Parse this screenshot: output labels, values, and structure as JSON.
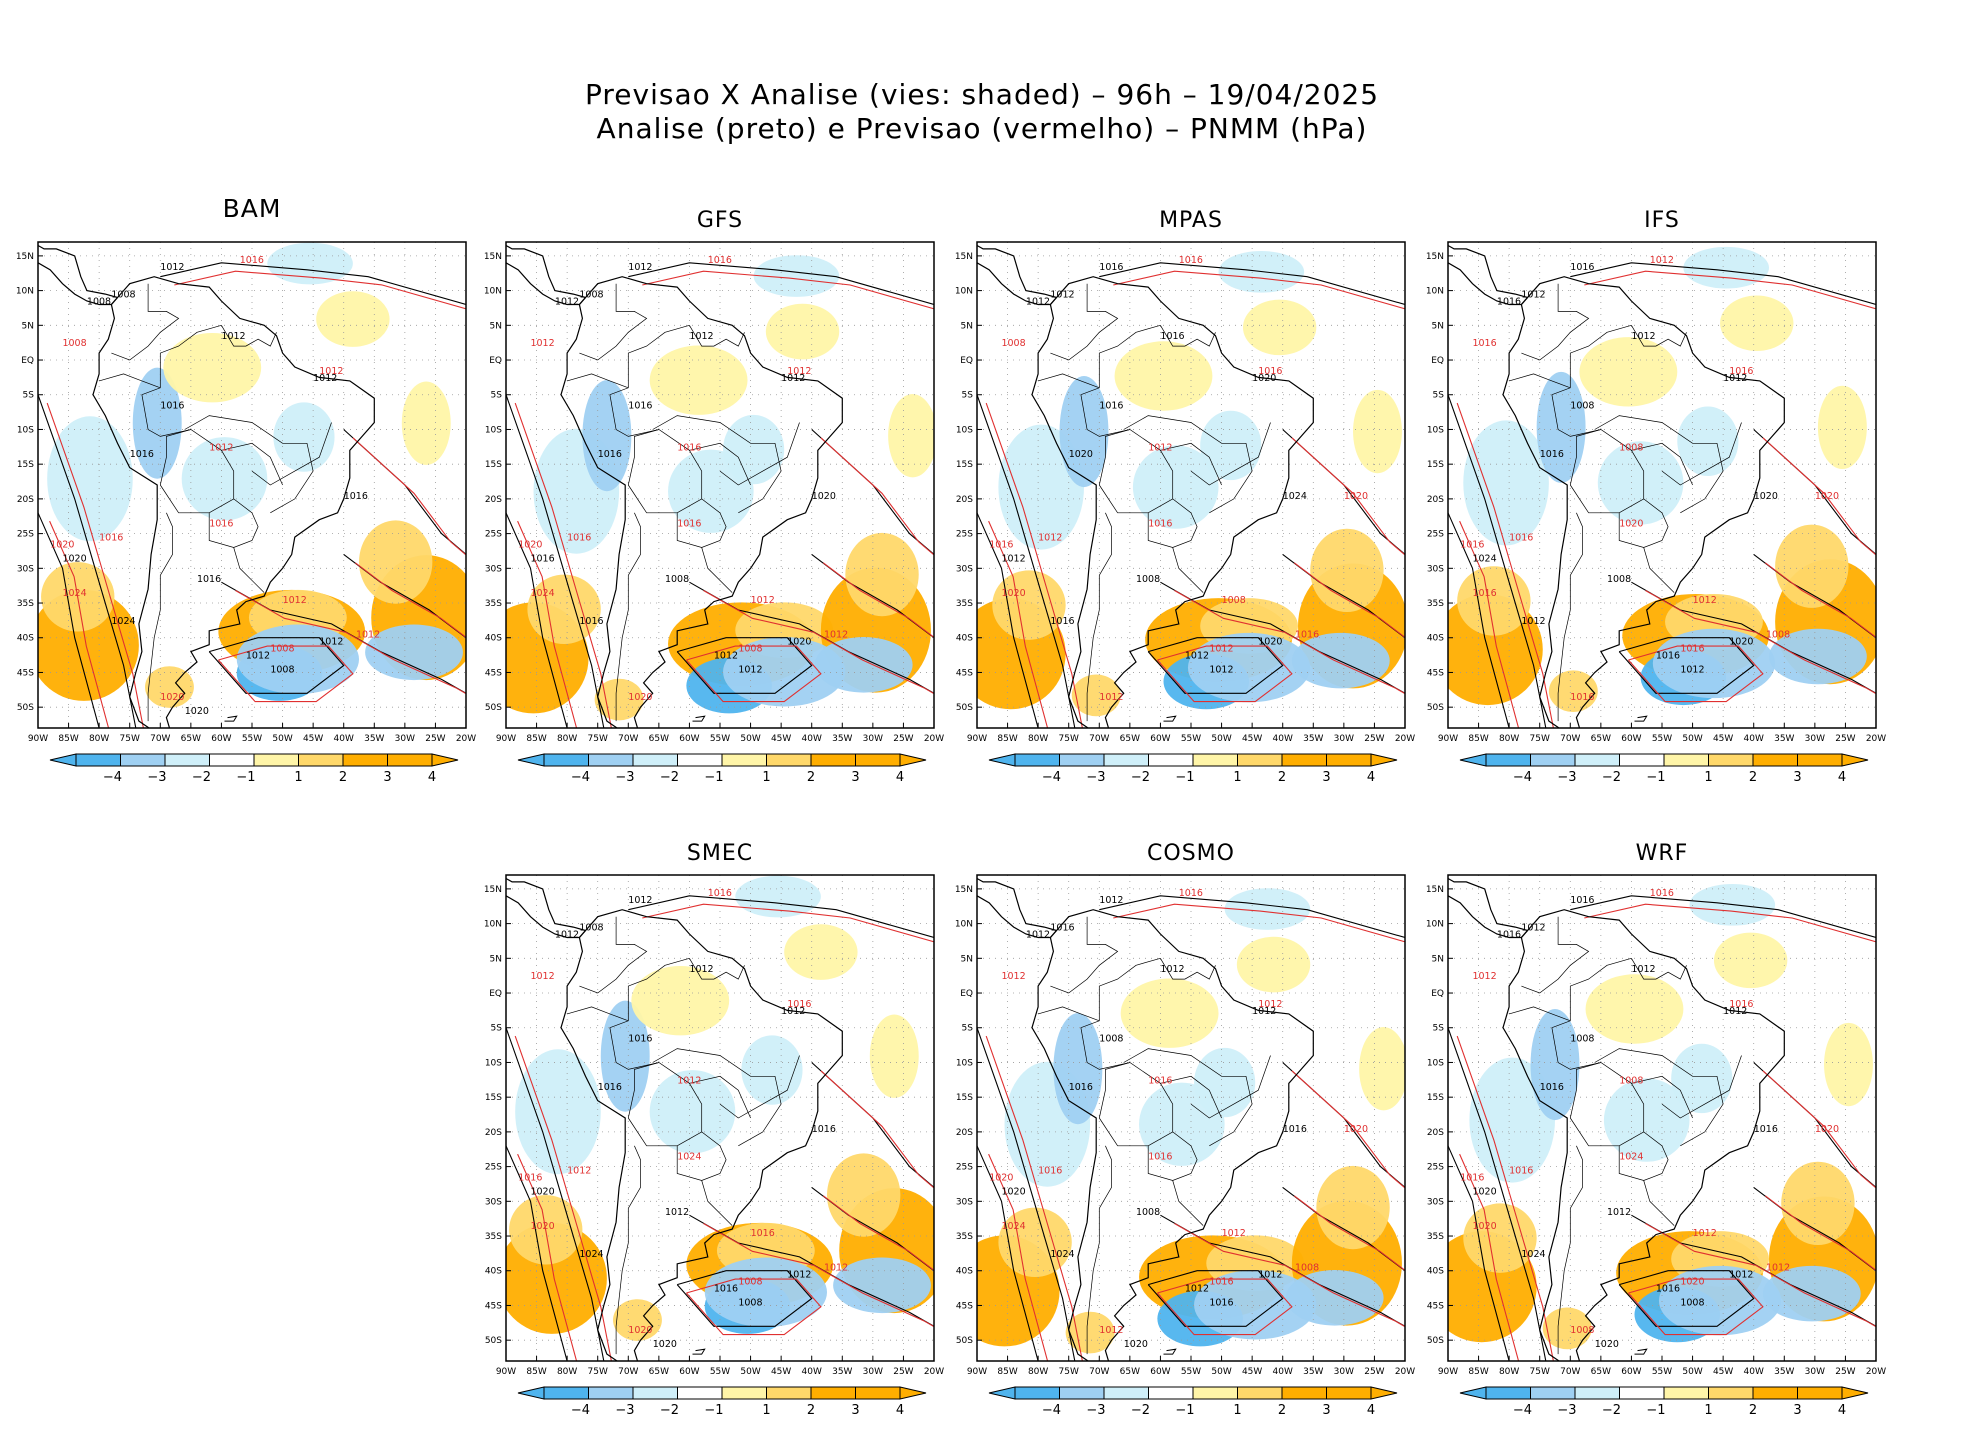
{
  "title": {
    "line1": "Previsao X Analise (vies: shaded) – 96h – 19/04/2025",
    "line2": "Analise (preto) e Previsao (vermelho) – PNMM (hPa)"
  },
  "colors": {
    "neg4": "#4fb4ee",
    "neg3": "#9fd0f2",
    "neg2": "#cfeff9",
    "neutral": "#ffffff",
    "pos2": "#fff5a8",
    "pos3": "#ffd86a",
    "pos4": "#ffae00",
    "analysis": "#000000",
    "forecast": "#e03030"
  },
  "axes": {
    "lat_labels": [
      "15N",
      "10N",
      "5N",
      "EQ",
      "5S",
      "10S",
      "15S",
      "20S",
      "25S",
      "30S",
      "35S",
      "40S",
      "45S",
      "50S"
    ],
    "lon_labels": [
      "90W",
      "85W",
      "80W",
      "75W",
      "70W",
      "65W",
      "60W",
      "55W",
      "50W",
      "45W",
      "40W",
      "35W",
      "30W",
      "25W",
      "20W"
    ]
  },
  "colorbar": {
    "labels": [
      "−4",
      "−3",
      "−2",
      "−1",
      "1",
      "2",
      "3",
      "4"
    ]
  },
  "panels": [
    {
      "id": "bam",
      "name": "BAM",
      "row": 0,
      "col": 0,
      "black_labels": [
        "1012",
        "1008",
        "1016",
        "1008",
        "1012",
        "1012",
        "1016",
        "1016",
        "1020",
        "1024",
        "1012",
        "1016",
        "1008",
        "1012",
        "1020"
      ],
      "red_labels": [
        "1016",
        "1008",
        "1012",
        "1012",
        "1016",
        "1020",
        "1024",
        "1016",
        "1012",
        "1008",
        "1012",
        "1020"
      ]
    },
    {
      "id": "gfs",
      "name": "GFS",
      "row": 0,
      "col": 1,
      "black_labels": [
        "1012",
        "1008",
        "1016",
        "1012",
        "1012",
        "1012",
        "1016",
        "1020",
        "1016",
        "1016",
        "1012",
        "1008",
        "1012",
        "1020"
      ],
      "red_labels": [
        "1016",
        "1012",
        "1016",
        "1012",
        "1016",
        "1020",
        "1024",
        "1016",
        "1012",
        "1008",
        "1012",
        "1020"
      ]
    },
    {
      "id": "mpas",
      "name": "MPAS",
      "row": 0,
      "col": 2,
      "black_labels": [
        "1016",
        "1012",
        "1016",
        "1012",
        "1016",
        "1020",
        "1020",
        "1024",
        "1012",
        "1016",
        "1012",
        "1008",
        "1012",
        "1020"
      ],
      "red_labels": [
        "1016",
        "1008",
        "1012",
        "1016",
        "1012",
        "1016",
        "1020",
        "1016",
        "1008",
        "1012",
        "1016",
        "1012",
        "1020"
      ]
    },
    {
      "id": "ifs",
      "name": "IFS",
      "row": 0,
      "col": 3,
      "black_labels": [
        "1016",
        "1012",
        "1008",
        "1016",
        "1012",
        "1012",
        "1016",
        "1020",
        "1024",
        "1012",
        "1016",
        "1008",
        "1012",
        "1020"
      ],
      "red_labels": [
        "1012",
        "1016",
        "1008",
        "1016",
        "1016",
        "1016",
        "1016",
        "1020",
        "1012",
        "1016",
        "1008",
        "1016",
        "1020"
      ]
    },
    {
      "id": "smec",
      "name": "SMEC",
      "row": 1,
      "col": 1,
      "black_labels": [
        "1012",
        "1008",
        "1016",
        "1012",
        "1012",
        "1012",
        "1016",
        "1016",
        "1020",
        "1024",
        "1016",
        "1012",
        "1008",
        "1012",
        "1020"
      ],
      "red_labels": [
        "1016",
        "1012",
        "1012",
        "1016",
        "1012",
        "1016",
        "1020",
        "1024",
        "1016",
        "1008",
        "1012",
        "1020"
      ]
    },
    {
      "id": "cosmo",
      "name": "COSMO",
      "row": 1,
      "col": 2,
      "black_labels": [
        "1012",
        "1016",
        "1008",
        "1012",
        "1012",
        "1012",
        "1016",
        "1016",
        "1020",
        "1024",
        "1012",
        "1008",
        "1016",
        "1012",
        "1020"
      ],
      "red_labels": [
        "1016",
        "1012",
        "1016",
        "1012",
        "1016",
        "1020",
        "1024",
        "1016",
        "1012",
        "1016",
        "1008",
        "1012",
        "1020"
      ]
    },
    {
      "id": "wrf",
      "name": "WRF",
      "row": 1,
      "col": 3,
      "black_labels": [
        "1016",
        "1012",
        "1008",
        "1016",
        "1012",
        "1012",
        "1016",
        "1016",
        "1020",
        "1024",
        "1016",
        "1012",
        "1008",
        "1012",
        "1020"
      ],
      "red_labels": [
        "1016",
        "1012",
        "1008",
        "1016",
        "1016",
        "1016",
        "1020",
        "1024",
        "1012",
        "1020",
        "1012",
        "1008",
        "1020"
      ]
    }
  ]
}
